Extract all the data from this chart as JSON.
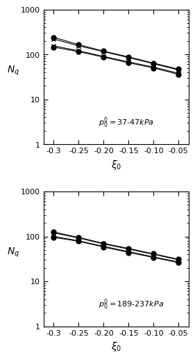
{
  "xi_values": [
    -0.3,
    -0.25,
    -0.2,
    -0.15,
    -0.1,
    -0.05
  ],
  "panel1": {
    "label": "$p_0' = 37\\text{-}47kPa$",
    "measured_upper": [
      220,
      155,
      115,
      85,
      62,
      45
    ],
    "measured_lower": [
      155,
      120,
      90,
      68,
      52,
      38
    ],
    "predicted_upper": [
      240,
      165,
      118,
      88,
      64,
      47
    ],
    "predicted_lower": [
      145,
      115,
      87,
      65,
      50,
      36
    ]
  },
  "panel2": {
    "label": "$p_0' = 189\\text{-}237kPa$",
    "measured_upper": [
      120,
      92,
      68,
      52,
      40,
      30
    ],
    "measured_lower": [
      100,
      80,
      60,
      46,
      35,
      27
    ],
    "predicted_upper": [
      125,
      95,
      70,
      54,
      41,
      31
    ],
    "predicted_lower": [
      95,
      78,
      58,
      44,
      34,
      26
    ]
  },
  "xlim": [
    -0.32,
    -0.03
  ],
  "ylim": [
    1,
    1000
  ],
  "xticks": [
    -0.3,
    -0.25,
    -0.2,
    -0.15,
    -0.1,
    -0.05
  ],
  "xtick_labels": [
    "-0.3",
    "-0.25",
    "-0.20",
    "-0.15",
    "-0.10",
    "-0.05"
  ],
  "xlabel": "$\\xi_0$",
  "ylabel": "$N_q$",
  "line_color": "black",
  "marker_cross": "x",
  "marker_circle": "o",
  "markersize_cross": 5,
  "markersize_circle": 5,
  "linewidth": 0.8,
  "fontsize_label": 8,
  "fontsize_annot": 8
}
